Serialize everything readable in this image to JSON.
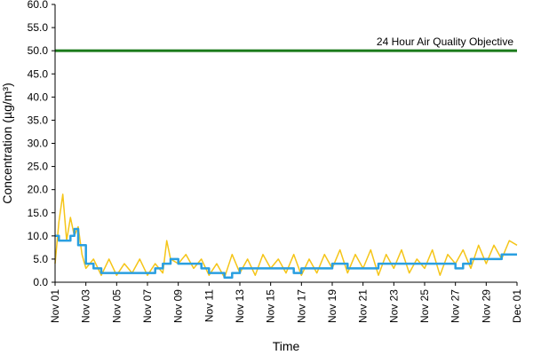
{
  "chart_data": {
    "type": "line",
    "title": "",
    "xlabel": "Time",
    "ylabel": "Concentration (µg/m³)",
    "ylim": [
      0,
      60
    ],
    "xlim": [
      "2000-11-01",
      "2000-12-01"
    ],
    "y_ticks": [
      "0.0",
      "5.0",
      "10.0",
      "15.0",
      "20.0",
      "25.0",
      "30.0",
      "35.0",
      "40.0",
      "45.0",
      "50.0",
      "55.0",
      "60.0"
    ],
    "x_ticks": [
      {
        "label": "Nov 01",
        "date": "2000-11-01"
      },
      {
        "label": "Nov 03",
        "date": "2000-11-03"
      },
      {
        "label": "Nov 05",
        "date": "2000-11-05"
      },
      {
        "label": "Nov 07",
        "date": "2000-11-07"
      },
      {
        "label": "Nov 09",
        "date": "2000-11-09"
      },
      {
        "label": "Nov 11",
        "date": "2000-11-11"
      },
      {
        "label": "Nov 13",
        "date": "2000-11-13"
      },
      {
        "label": "Nov 15",
        "date": "2000-11-15"
      },
      {
        "label": "Nov 17",
        "date": "2000-11-17"
      },
      {
        "label": "Nov 19",
        "date": "2000-11-19"
      },
      {
        "label": "Nov 21",
        "date": "2000-11-21"
      },
      {
        "label": "Nov 23",
        "date": "2000-11-23"
      },
      {
        "label": "Nov 25",
        "date": "2000-11-25"
      },
      {
        "label": "Nov 27",
        "date": "2000-11-27"
      },
      {
        "label": "Nov 29",
        "date": "2000-11-29"
      },
      {
        "label": "Dec 01",
        "date": "2000-12-01"
      }
    ],
    "grid": false,
    "objective": {
      "label": "24 Hour Air Quality Objective",
      "value": 50.0,
      "color": "#1a7a1a"
    },
    "series": [
      {
        "color": "#f5c518",
        "style": "line",
        "x": [
          "2000-11-01",
          "2000-11-01T06:00",
          "2000-11-01T12:00",
          "2000-11-01T18:00",
          "2000-11-02",
          "2000-11-02T06:00",
          "2000-11-02T12:00",
          "2000-11-02T18:00",
          "2000-11-03",
          "2000-11-03T12:00",
          "2000-11-04",
          "2000-11-04T12:00",
          "2000-11-05",
          "2000-11-05T12:00",
          "2000-11-06",
          "2000-11-06T12:00",
          "2000-11-07",
          "2000-11-07T12:00",
          "2000-11-08",
          "2000-11-08T06:00",
          "2000-11-08T12:00",
          "2000-11-09",
          "2000-11-09T12:00",
          "2000-11-10",
          "2000-11-10T12:00",
          "2000-11-11",
          "2000-11-11T12:00",
          "2000-11-12",
          "2000-11-12T12:00",
          "2000-11-13",
          "2000-11-13T12:00",
          "2000-11-14",
          "2000-11-14T12:00",
          "2000-11-15",
          "2000-11-15T12:00",
          "2000-11-16",
          "2000-11-16T12:00",
          "2000-11-17",
          "2000-11-17T12:00",
          "2000-11-18",
          "2000-11-18T12:00",
          "2000-11-19",
          "2000-11-19T12:00",
          "2000-11-20",
          "2000-11-20T12:00",
          "2000-11-21",
          "2000-11-21T12:00",
          "2000-11-22",
          "2000-11-22T12:00",
          "2000-11-23",
          "2000-11-23T12:00",
          "2000-11-24",
          "2000-11-24T12:00",
          "2000-11-25",
          "2000-11-25T12:00",
          "2000-11-26",
          "2000-11-26T12:00",
          "2000-11-27",
          "2000-11-27T12:00",
          "2000-11-28",
          "2000-11-28T12:00",
          "2000-11-29",
          "2000-11-29T12:00",
          "2000-11-30",
          "2000-11-30T12:00",
          "2000-12-01"
        ],
        "values": [
          4,
          13,
          19,
          9,
          14,
          10,
          12,
          6,
          3,
          5,
          1.5,
          5,
          1.5,
          4,
          2,
          5,
          1.5,
          4,
          2,
          9,
          5,
          4,
          6,
          3,
          5,
          1.5,
          4,
          1,
          6,
          2,
          5,
          1.5,
          6,
          3,
          5,
          2,
          6,
          1.5,
          5,
          2,
          6,
          3,
          7,
          2,
          6,
          3,
          7,
          1.5,
          6,
          3,
          7,
          2,
          5,
          3,
          7,
          1.5,
          6,
          4,
          7,
          3,
          8,
          4,
          8,
          5,
          9,
          8
        ]
      },
      {
        "color": "#2a9fe0",
        "style": "step",
        "x": [
          "2000-11-01",
          "2000-11-01T06:00",
          "2000-11-01T12:00",
          "2000-11-02",
          "2000-11-02T06:00",
          "2000-11-02T12:00",
          "2000-11-03",
          "2000-11-03T12:00",
          "2000-11-04",
          "2000-11-05",
          "2000-11-06",
          "2000-11-07",
          "2000-11-07T12:00",
          "2000-11-08",
          "2000-11-08T12:00",
          "2000-11-09",
          "2000-11-10",
          "2000-11-10T12:00",
          "2000-11-11",
          "2000-11-11T12:00",
          "2000-11-12",
          "2000-11-12T12:00",
          "2000-11-13",
          "2000-11-14",
          "2000-11-15",
          "2000-11-16",
          "2000-11-16T12:00",
          "2000-11-17",
          "2000-11-18",
          "2000-11-19",
          "2000-11-20",
          "2000-11-21",
          "2000-11-22",
          "2000-11-23",
          "2000-11-24",
          "2000-11-25",
          "2000-11-26",
          "2000-11-27",
          "2000-11-27T12:00",
          "2000-11-28",
          "2000-11-29",
          "2000-11-30",
          "2000-12-01"
        ],
        "values": [
          10,
          9,
          9,
          10,
          11.5,
          8,
          4,
          3,
          2,
          2,
          2,
          2,
          3,
          4,
          5,
          4,
          4,
          3,
          2,
          2,
          1,
          2,
          3,
          3,
          3,
          3,
          2,
          3,
          3,
          4,
          3,
          3,
          4,
          4,
          4,
          4,
          4,
          3,
          4,
          5,
          5,
          6,
          6
        ]
      }
    ]
  }
}
